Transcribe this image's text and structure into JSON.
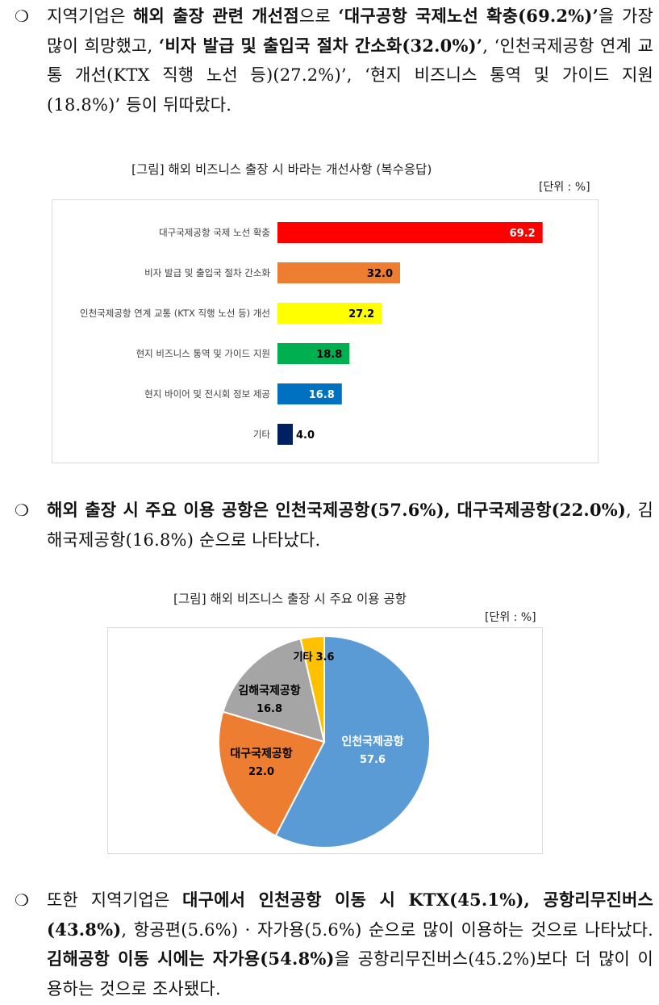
{
  "paragraph1": {
    "bullet": "❍",
    "parts": [
      {
        "text": "지역기업은 ",
        "bold": false
      },
      {
        "text": "해외 출장 관련 개선점",
        "bold": true
      },
      {
        "text": "으로 ",
        "bold": false
      },
      {
        "text": "‘대구공항 국제노선 확충(69.2%)’",
        "bold": true
      },
      {
        "text": "을 가장 많이 희망했고, ",
        "bold": false
      },
      {
        "text": "‘비자 발급 및 출입국 절차 간소화(32.0%)’",
        "bold": true
      },
      {
        "text": ", ‘인천국제공항 연계 교통 개선(KTX 직행 노선 등)(27.2%)’, ‘현지 비즈니스 통역 및 가이드 지원(18.8%)’ 등이 뒤따랐다.",
        "bold": false
      }
    ]
  },
  "figure1": {
    "caption": "[그림] 해외 비즈니스 출장 시 바라는 개선사항 (복수응답)",
    "unit": "[단위 : %]"
  },
  "paragraph2": {
    "bullet": "❍",
    "parts": [
      {
        "text": "해외 출장 시 주요 이용 공항은 인천국제공항(57.6%), 대구국제공항(22.0%)",
        "bold": true
      },
      {
        "text": ", 김해국제공항(16.8%) 순으로 나타났다.",
        "bold": false
      }
    ]
  },
  "figure2": {
    "caption": "[그림] 해외 비즈니스 출장 시 주요 이용 공항",
    "unit": "[단위 : %]"
  },
  "paragraph3": {
    "bullet": "❍",
    "parts": [
      {
        "text": "또한 지역기업은 ",
        "bold": false
      },
      {
        "text": "대구에서 인천공항 이동 시 KTX(45.1%), 공항리무진버스(43.8%)",
        "bold": true
      },
      {
        "text": ", 항공편(5.6%) · 자가용(5.6%) 순으로 많이 이용하는 것으로 나타났다. ",
        "bold": false
      },
      {
        "text": "김해공항 이동 시에는 자가용(54.8%)",
        "bold": true
      },
      {
        "text": "을 공항리무진버스(45.2%)보다 더 많이 이용하는 것으로 조사됐다.",
        "bold": false
      }
    ]
  },
  "chart_data": [
    {
      "type": "bar",
      "orientation": "horizontal",
      "categories": [
        "대구국제공항 국제 노선 확충",
        "비자 발급 및 출입국 절차 간소화",
        "인천국제공항 연계 교통 (KTX 직행 노선 등) 개선",
        "현지 비즈니스 통역 및 가이드 지원",
        "현지 바이어 및 전시회 정보 제공",
        "기타"
      ],
      "values": [
        69.2,
        32.0,
        27.2,
        18.8,
        16.8,
        4.0
      ],
      "value_labels": [
        "69.2",
        "32.0",
        "27.2",
        "18.8",
        "16.8",
        "4.0"
      ],
      "colors": [
        "#ff0000",
        "#ed7d31",
        "#ffff00",
        "#00b050",
        "#0070c0",
        "#002060"
      ],
      "label_colors": [
        "#ffffff",
        "#000000",
        "#000000",
        "#000000",
        "#ffffff",
        "#000000"
      ],
      "label_inside": [
        true,
        true,
        true,
        true,
        true,
        false
      ],
      "xlim": [
        0,
        100
      ],
      "grid": false,
      "legend": "none"
    },
    {
      "type": "pie",
      "labels": [
        "인천국제공항",
        "대구국제공항",
        "김해국제공항",
        "기타"
      ],
      "values": [
        57.6,
        22.0,
        16.8,
        3.6
      ],
      "value_labels": [
        "57.6",
        "22.0",
        "16.8",
        "3.6"
      ],
      "colors": [
        "#5b9bd5",
        "#ed7d31",
        "#a5a5a5",
        "#ffc000"
      ],
      "label_colors": [
        "#ffffff",
        "#000000",
        "#000000",
        "#000000"
      ],
      "start": "12 o'clock",
      "direction": "clockwise",
      "legend": "none"
    }
  ]
}
